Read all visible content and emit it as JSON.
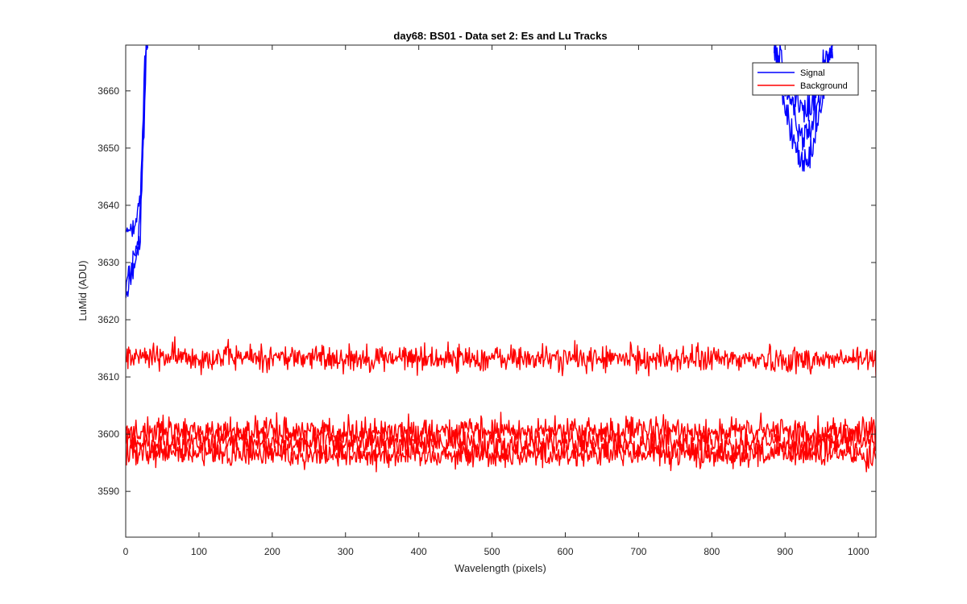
{
  "chart_data": {
    "type": "line",
    "title": "day68: BS01 - Data set 2: Es and Lu Tracks",
    "xlabel": "Wavelength (pixels)",
    "ylabel": "LuMid (ADU)",
    "xlim": [
      0,
      1024
    ],
    "ylim": [
      3582,
      3668
    ],
    "x_ticks": [
      0,
      100,
      200,
      300,
      400,
      500,
      600,
      700,
      800,
      900,
      1000
    ],
    "y_ticks": [
      3590,
      3600,
      3610,
      3620,
      3630,
      3640,
      3650,
      3660
    ],
    "grid": false,
    "legend": {
      "position": "top-right",
      "entries": [
        "Signal",
        "Background"
      ]
    },
    "colors": {
      "Signal": "#0000ff",
      "Background": "#ff0000"
    },
    "series": [
      {
        "name": "Signal",
        "color": "#0000ff",
        "tracks": [
          {
            "x": [
              0,
              5,
              10,
              15,
              20,
              22,
              24,
              26,
              28,
              30
            ],
            "y": [
              3626,
              3628,
              3630,
              3632,
              3638,
              3645,
              3652,
              3660,
              3668,
              3668
            ]
          },
          {
            "x": [
              0,
              5,
              10,
              15,
              20,
              22,
              24,
              26,
              28,
              30
            ],
            "y": [
              3634,
              3636,
              3637,
              3639,
              3641,
              3648,
              3656,
              3664,
              3668,
              3668
            ]
          },
          {
            "x": [
              0,
              5,
              10,
              15,
              20,
              22,
              24,
              26,
              28,
              30
            ],
            "y": [
              3624,
              3627,
              3629,
              3631,
              3634,
              3642,
              3650,
              3658,
              3668,
              3668
            ]
          },
          {
            "x": [
              885,
              895,
              905,
              915,
              925,
              935,
              945,
              955,
              965
            ],
            "y": [
              3668,
              3660,
              3654,
              3650,
              3646,
              3648,
              3654,
              3662,
              3668
            ]
          },
          {
            "x": [
              885,
              895,
              905,
              915,
              925,
              935,
              945,
              955,
              965
            ],
            "y": [
              3668,
              3664,
              3658,
              3655,
              3652,
              3653,
              3658,
              3664,
              3668
            ]
          },
          {
            "x": [
              885,
              895,
              905,
              915,
              925,
              935,
              945,
              955,
              965
            ],
            "y": [
              3668,
              3666,
              3662,
              3659,
              3656,
              3657,
              3661,
              3666,
              3668
            ]
          }
        ]
      },
      {
        "name": "Background",
        "color": "#ff0000",
        "tracks": [
          {
            "x": [
              0,
              1024
            ],
            "y": [
              3613.5,
              3613.0
            ]
          },
          {
            "x": [
              0,
              1024
            ],
            "y": [
              3600.5,
              3600.5
            ]
          },
          {
            "x": [
              0,
              1024
            ],
            "y": [
              3598.5,
              3598.5
            ]
          },
          {
            "x": [
              0,
              1024
            ],
            "y": [
              3596.5,
              3596.5
            ]
          }
        ]
      }
    ]
  }
}
